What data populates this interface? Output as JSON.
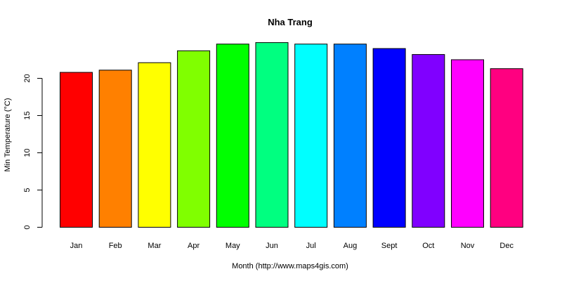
{
  "chart_data": {
    "type": "bar",
    "title": "Nha Trang",
    "xlabel": "Month (http://www.maps4gis.com)",
    "ylabel": "Min Temperature (°C)",
    "categories": [
      "Jan",
      "Feb",
      "Mar",
      "Apr",
      "May",
      "Jun",
      "Jul",
      "Aug",
      "Sept",
      "Oct",
      "Nov",
      "Dec"
    ],
    "values": [
      20.8,
      21.1,
      22.1,
      23.7,
      24.6,
      24.8,
      24.6,
      24.6,
      24.0,
      23.2,
      22.5,
      21.3
    ],
    "colors": [
      "#FF0000",
      "#FF8000",
      "#FFFF00",
      "#80FF00",
      "#00FF00",
      "#00FF80",
      "#00FFFF",
      "#0080FF",
      "#0000FF",
      "#8000FF",
      "#FF00FF",
      "#FF0080"
    ],
    "yticks": [
      0,
      5,
      10,
      15,
      20
    ],
    "ylim": [
      0,
      25
    ],
    "grid": false,
    "legend": "none"
  }
}
